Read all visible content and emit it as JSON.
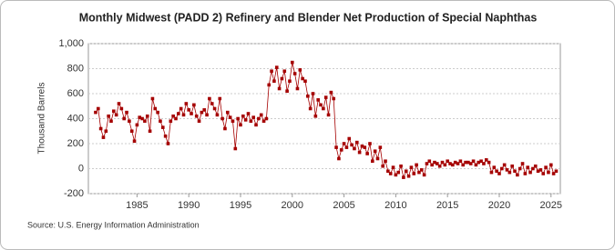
{
  "chart_data": {
    "type": "line",
    "title": "Monthly Midwest (PADD 2) Refinery and Blender Net Production of Special Naphthas",
    "ylabel": "Thousand Barrels",
    "source": "Source: U.S. Energy Information Administration",
    "grid": true,
    "xlim": [
      1980.3,
      2025.9
    ],
    "xticks": [
      1985,
      1990,
      1995,
      2000,
      2005,
      2010,
      2015,
      2020,
      2025
    ],
    "ylim": [
      -200,
      1000
    ],
    "yticks": [
      -200,
      0,
      200,
      400,
      600,
      800,
      {
        "value": 1000,
        "label": "1,000"
      }
    ],
    "x": [
      1981,
      1981.25,
      1981.5,
      1981.75,
      1982,
      1982.25,
      1982.5,
      1982.75,
      1983,
      1983.25,
      1983.5,
      1983.75,
      1984,
      1984.25,
      1984.5,
      1984.75,
      1985,
      1985.25,
      1985.5,
      1985.75,
      1986,
      1986.25,
      1986.5,
      1986.75,
      1987,
      1987.25,
      1987.5,
      1987.75,
      1988,
      1988.25,
      1988.5,
      1988.75,
      1989,
      1989.25,
      1989.5,
      1989.75,
      1990,
      1990.25,
      1990.5,
      1990.75,
      1991,
      1991.25,
      1991.5,
      1991.75,
      1992,
      1992.25,
      1992.5,
      1992.75,
      1993,
      1993.25,
      1993.5,
      1993.75,
      1994,
      1994.25,
      1994.5,
      1994.75,
      1995,
      1995.25,
      1995.5,
      1995.75,
      1996,
      1996.25,
      1996.5,
      1996.75,
      1997,
      1997.25,
      1997.5,
      1997.75,
      1998,
      1998.25,
      1998.5,
      1998.75,
      1999,
      1999.25,
      1999.5,
      1999.75,
      2000,
      2000.25,
      2000.5,
      2000.75,
      2001,
      2001.25,
      2001.5,
      2001.75,
      2002,
      2002.25,
      2002.5,
      2002.75,
      2003,
      2003.25,
      2003.5,
      2003.75,
      2004,
      2004.25,
      2004.5,
      2004.75,
      2005,
      2005.25,
      2005.5,
      2005.75,
      2006,
      2006.25,
      2006.5,
      2006.75,
      2007,
      2007.25,
      2007.5,
      2007.75,
      2008,
      2008.25,
      2008.5,
      2008.75,
      2009,
      2009.25,
      2009.5,
      2009.75,
      2010,
      2010.25,
      2010.5,
      2010.75,
      2011,
      2011.25,
      2011.5,
      2011.75,
      2012,
      2012.25,
      2012.5,
      2012.75,
      2013,
      2013.25,
      2013.5,
      2013.75,
      2014,
      2014.25,
      2014.5,
      2014.75,
      2015,
      2015.25,
      2015.5,
      2015.75,
      2016,
      2016.25,
      2016.5,
      2016.75,
      2017,
      2017.25,
      2017.5,
      2017.75,
      2018,
      2018.25,
      2018.5,
      2018.75,
      2019,
      2019.25,
      2019.5,
      2019.75,
      2020,
      2020.25,
      2020.5,
      2020.75,
      2021,
      2021.25,
      2021.5,
      2021.75,
      2022,
      2022.25,
      2022.5,
      2022.75,
      2023,
      2023.25,
      2023.5,
      2023.75,
      2024,
      2024.25,
      2024.5,
      2024.75,
      2025,
      2025.25,
      2025.5
    ],
    "series": [
      {
        "color": "#a50000",
        "values": [
          450,
          480,
          320,
          250,
          300,
          420,
          380,
          460,
          430,
          520,
          480,
          400,
          450,
          380,
          300,
          220,
          350,
          410,
          400,
          380,
          420,
          300,
          560,
          480,
          450,
          380,
          330,
          260,
          200,
          380,
          420,
          400,
          440,
          480,
          430,
          520,
          470,
          440,
          510,
          420,
          380,
          450,
          470,
          430,
          560,
          520,
          480,
          430,
          560,
          400,
          320,
          450,
          410,
          380,
          160,
          400,
          350,
          420,
          390,
          440,
          380,
          410,
          350,
          400,
          430,
          380,
          400,
          670,
          780,
          700,
          810,
          640,
          720,
          780,
          620,
          700,
          850,
          760,
          640,
          790,
          720,
          700,
          580,
          480,
          600,
          420,
          550,
          510,
          480,
          570,
          430,
          610,
          560,
          170,
          80,
          150,
          200,
          170,
          240,
          190,
          160,
          210,
          130,
          180,
          170,
          120,
          200,
          60,
          140,
          80,
          170,
          20,
          60,
          -20,
          -40,
          10,
          -50,
          -30,
          20,
          -70,
          -20,
          -60,
          10,
          -40,
          30,
          -30,
          -10,
          -50,
          40,
          60,
          30,
          50,
          40,
          20,
          50,
          30,
          60,
          40,
          30,
          50,
          40,
          60,
          30,
          50,
          50,
          40,
          60,
          30,
          50,
          60,
          40,
          70,
          50,
          -30,
          10,
          -20,
          -40,
          0,
          30,
          -10,
          -30,
          20,
          -20,
          -50,
          0,
          40,
          -40,
          10,
          -30,
          0,
          20,
          -20,
          -10,
          -40,
          10,
          -30,
          30,
          -40,
          -20
        ]
      }
    ]
  }
}
